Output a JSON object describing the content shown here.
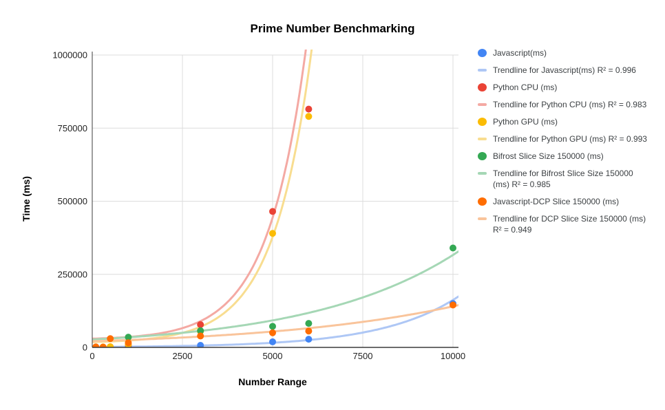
{
  "title": "Prime Number Benchmarking",
  "axes": {
    "x": {
      "title": "Number Range",
      "min": 0,
      "max": 10000,
      "ticks": [
        0,
        2500,
        5000,
        7500,
        10000
      ]
    },
    "y": {
      "title": "Time (ms)",
      "min": 0,
      "max": 1000000,
      "ticks": [
        0,
        250000,
        500000,
        750000,
        1000000
      ]
    }
  },
  "colors": {
    "background": "#ffffff",
    "gridline": "#dcdcdc",
    "axis_line": "#3b3b3b",
    "tick_label": "#222222",
    "legend_text": "#3c4043",
    "javascript": "#4285F4",
    "python_cpu": "#EA4335",
    "python_gpu": "#FBBC04",
    "bifrost": "#34A853",
    "dcp": "#FF6D01",
    "trend_javascript": "#AEC7F5",
    "trend_python_cpu": "#F4A9A3",
    "trend_python_gpu": "#F8DD90",
    "trend_bifrost": "#A5D7B5",
    "trend_dcp": "#F9C49B"
  },
  "legend": [
    {
      "shape": "circle",
      "color": "#4285F4",
      "label": "Javascript(ms)"
    },
    {
      "shape": "dash",
      "color": "#AEC7F5",
      "label": "Trendline for Javascript(ms) R² = 0.996"
    },
    {
      "shape": "circle",
      "color": "#EA4335",
      "label": "Python CPU (ms)"
    },
    {
      "shape": "dash",
      "color": "#F4A9A3",
      "label": "Trendline for Python CPU (ms) R² = 0.983"
    },
    {
      "shape": "circle",
      "color": "#FBBC04",
      "label": "Python GPU (ms)"
    },
    {
      "shape": "dash",
      "color": "#F8DD90",
      "label": "Trendline for Python GPU (ms) R² = 0.993"
    },
    {
      "shape": "circle",
      "color": "#34A853",
      "label": "Bifrost Slice Size 150000 (ms)"
    },
    {
      "shape": "dash",
      "color": "#A5D7B5",
      "label": "Trendline for Bifrost Slice Size 150000 (ms) R² = 0.985"
    },
    {
      "shape": "circle",
      "color": "#FF6D01",
      "label": "Javascript-DCP Slice 150000 (ms)"
    },
    {
      "shape": "dash",
      "color": "#F9C49B",
      "label": "Trendline for DCP Slice Size 150000 (ms) R² = 0.949"
    }
  ],
  "chart_data": {
    "type": "scatter",
    "title": "Prime Number Benchmarking",
    "xlabel": "Number Range",
    "ylabel": "Time (ms)",
    "xlim": [
      0,
      10000
    ],
    "ylim": [
      0,
      1000000
    ],
    "grid": true,
    "legend_position": "right",
    "x": [
      100,
      300,
      500,
      1000,
      3000,
      5000,
      6000,
      10000
    ],
    "series": [
      {
        "name": "Javascript(ms)",
        "color": "#4285F4",
        "values": [
          50,
          150,
          400,
          1500,
          7000,
          19000,
          28000,
          150000
        ]
      },
      {
        "name": "Python CPU (ms)",
        "color": "#EA4335",
        "values": [
          300,
          800,
          2000,
          8000,
          78000,
          465000,
          815000,
          null
        ]
      },
      {
        "name": "Python GPU (ms)",
        "color": "#FBBC04",
        "values": [
          600,
          1500,
          2200,
          10000,
          55000,
          390000,
          790000,
          null
        ]
      },
      {
        "name": "Bifrost Slice Size 150000 (ms)",
        "color": "#34A853",
        "values": [
          null,
          null,
          null,
          35000,
          57000,
          72000,
          82000,
          340000
        ]
      },
      {
        "name": "Javascript-DCP Slice 150000 (ms)",
        "color": "#FF6D01",
        "values": [
          1800,
          800,
          30000,
          16000,
          39000,
          50000,
          56000,
          145000
        ]
      }
    ],
    "trendlines": [
      {
        "for": "Javascript(ms)",
        "r2": 0.996,
        "color": "#AEC7F5",
        "fit": "exponential",
        "curve": {
          "A": 0,
          "B": 1550,
          "C": 0.000465
        }
      },
      {
        "for": "Python CPU (ms)",
        "r2": 0.983,
        "color": "#F4A9A3",
        "fit": "exponential",
        "curve": {
          "A": 26000,
          "B": 3800,
          "C": 0.00094
        }
      },
      {
        "for": "Python GPU (ms)",
        "r2": 0.993,
        "color": "#F8DD90",
        "fit": "exponential",
        "curve": {
          "A": 15000,
          "B": 3300,
          "C": 0.00094
        }
      },
      {
        "for": "Bifrost Slice Size 150000 (ms)",
        "r2": 0.985,
        "color": "#A5D7B5",
        "fit": "exponential",
        "curve": {
          "A": 0,
          "B": 27000,
          "C": 0.000246
        }
      },
      {
        "for": "Javascript-DCP Slice 150000 (ms)",
        "r2": 0.949,
        "color": "#F9C49B",
        "fit": "exponential",
        "curve": {
          "A": 0,
          "B": 21000,
          "C": 0.00019
        }
      }
    ]
  }
}
